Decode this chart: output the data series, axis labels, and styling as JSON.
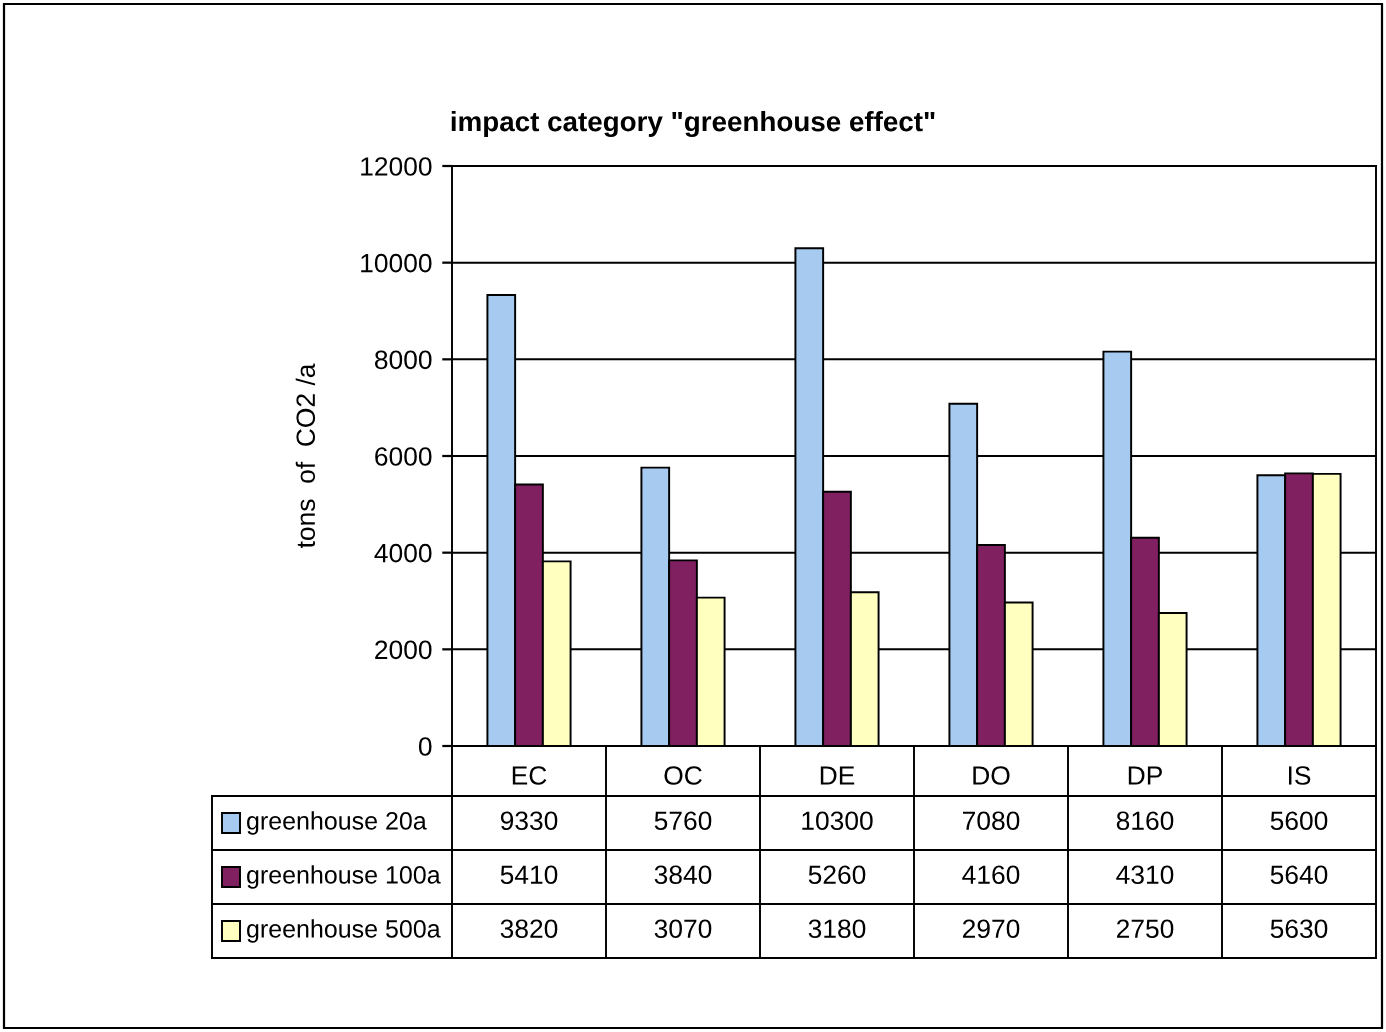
{
  "chart_data": {
    "type": "bar",
    "title": "impact category \"greenhouse effect\"",
    "ylabel": "tons  of  CO2 /a",
    "categories": [
      "EC",
      "OC",
      "DE",
      "DO",
      "DP",
      "IS"
    ],
    "series": [
      {
        "name": "greenhouse 20a",
        "color": "#a6caf0",
        "values": [
          9330,
          5760,
          10300,
          7080,
          8160,
          5600
        ]
      },
      {
        "name": "greenhouse 100a",
        "color": "#802060",
        "values": [
          5410,
          3840,
          5260,
          4160,
          4310,
          5640
        ]
      },
      {
        "name": "greenhouse 500a",
        "color": "#ffffc0",
        "values": [
          3820,
          3070,
          3180,
          2970,
          2750,
          5630
        ]
      }
    ],
    "ylim": [
      0,
      12000
    ],
    "yticks": [
      0,
      2000,
      4000,
      6000,
      8000,
      10000,
      12000
    ],
    "grid": "y",
    "data_labels": true,
    "legend": "bottom left"
  }
}
